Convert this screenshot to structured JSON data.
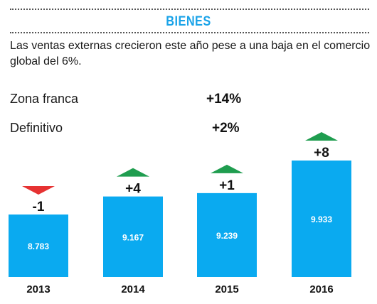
{
  "title": "BIENES",
  "subtitle": "Las ventas externas crecieron este año pese a una baja en el comercio global del 6%.",
  "legend": [
    {
      "label": "Zona franca",
      "value": "+14%"
    },
    {
      "label": "Definitivo",
      "value": "+2%"
    }
  ],
  "colors": {
    "bar": "#0aaaf0",
    "up": "#1f9d4f",
    "down": "#e63232",
    "title": "#1aa3e8"
  },
  "chart_data": {
    "type": "bar",
    "categories": [
      "2013",
      "2014",
      "2015",
      "2016"
    ],
    "values": [
      8783,
      9167,
      9239,
      9933
    ],
    "value_labels": [
      "8.783",
      "9.167",
      "9.239",
      "9.933"
    ],
    "changes": [
      "-1",
      "+4",
      "+1",
      "+8"
    ],
    "directions": [
      "down",
      "up",
      "up",
      "up"
    ],
    "title": "BIENES",
    "xlabel": "",
    "ylabel": "",
    "grid": false
  }
}
